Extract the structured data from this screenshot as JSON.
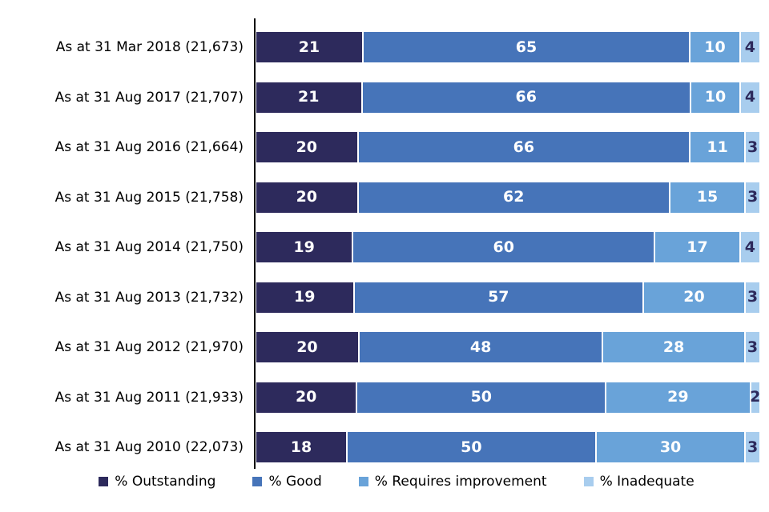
{
  "chart_data": {
    "type": "bar",
    "orientation": "horizontal",
    "stacked": true,
    "unit": "percent",
    "categories": [
      "As at 31 Mar 2018 (21,673)",
      "As at 31 Aug 2017 (21,707)",
      "As at 31 Aug 2016 (21,664)",
      "As at 31 Aug 2015 (21,758)",
      "As at 31 Aug 2014 (21,750)",
      "As at 31 Aug 2013 (21,732)",
      "As at 31 Aug 2012 (21,970)",
      "As at 31 Aug 2011 (21,933)",
      "As at 31 Aug 2010 (22,073)"
    ],
    "series": [
      {
        "name": "% Outstanding",
        "color": "#2D2A5C",
        "label_color": "#FFFFFF",
        "values": [
          21,
          21,
          20,
          20,
          19,
          19,
          20,
          20,
          18
        ]
      },
      {
        "name": "% Good",
        "color": "#4674B9",
        "label_color": "#FFFFFF",
        "values": [
          65,
          66,
          66,
          62,
          60,
          57,
          48,
          50,
          50
        ]
      },
      {
        "name": "% Requires improvement",
        "color": "#69A3D9",
        "label_color": "#FFFFFF",
        "values": [
          10,
          10,
          11,
          15,
          17,
          20,
          28,
          29,
          30
        ]
      },
      {
        "name": "% Inadequate",
        "color": "#A8CDEE",
        "label_color": "#2D2A5C",
        "values": [
          4,
          4,
          3,
          3,
          4,
          3,
          3,
          2,
          3
        ]
      }
    ],
    "xlim": [
      0,
      100
    ],
    "value_labels": "inside-center",
    "legend_position": "bottom",
    "axis_color": "#000000",
    "background": "#FFFFFF"
  }
}
